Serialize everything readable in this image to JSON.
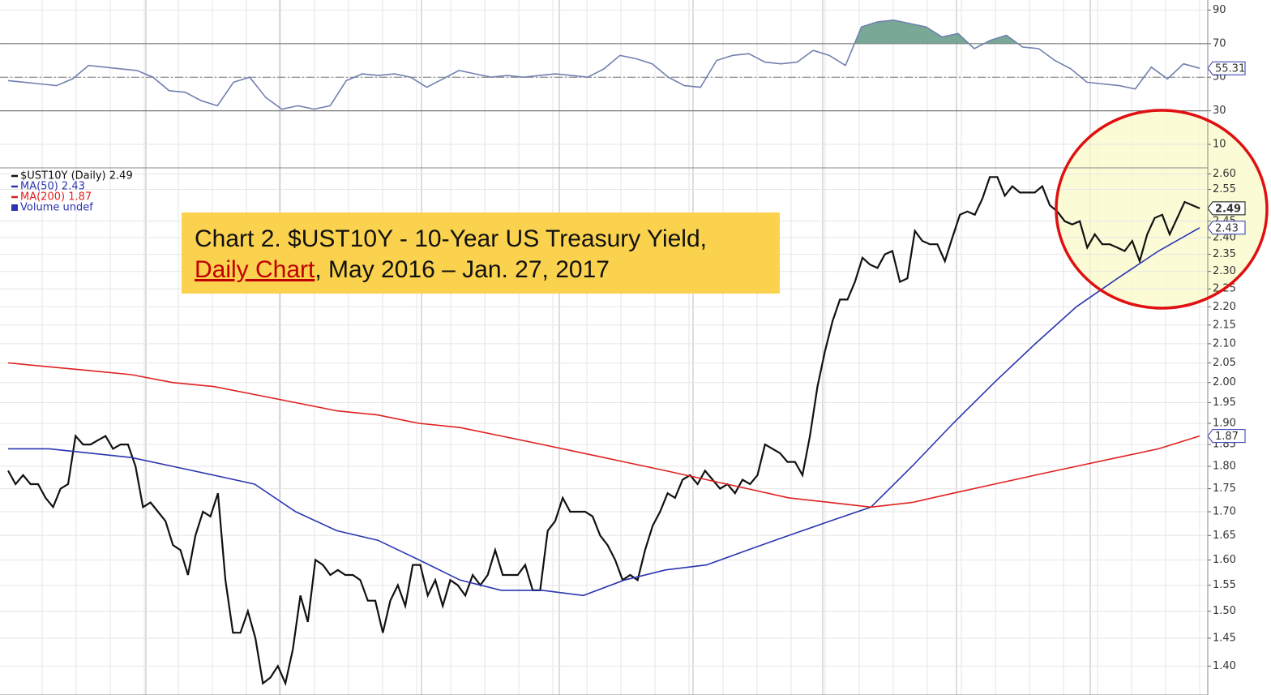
{
  "chart_data": [
    {
      "type": "line",
      "ylim": [
        -4,
        96
      ],
      "yticks": [
        90,
        70,
        50,
        30,
        10
      ],
      "grid": true,
      "overbought": 70,
      "midline": 50,
      "oversold": 30,
      "fill_above_color": "#6a9e8c",
      "series": [
        {
          "name": "RSI",
          "color": "#7180b0",
          "tag": "55.31",
          "values": [
            48,
            47,
            46,
            45,
            49,
            57,
            56,
            55,
            54,
            50,
            42,
            41,
            36,
            33,
            47,
            50,
            38,
            31,
            33,
            31,
            33,
            48,
            52,
            51,
            52,
            50,
            44,
            49,
            54,
            52,
            50,
            51,
            50,
            51,
            52,
            51,
            50,
            55,
            63,
            61,
            58,
            50,
            45,
            44,
            60,
            63,
            64,
            59,
            58,
            59,
            66,
            63,
            57,
            80,
            83,
            84,
            82,
            80,
            74,
            76,
            67,
            72,
            75,
            68,
            67,
            60,
            55,
            47,
            46,
            45,
            43,
            56,
            49,
            58,
            55.31
          ]
        }
      ]
    },
    {
      "type": "line",
      "log_scale": true,
      "ylim": [
        1.35,
        2.62
      ],
      "grid": true,
      "yticks": [
        {
          "value": 1.4,
          "label": "1.40"
        },
        {
          "value": 1.45,
          "label": "1.45"
        },
        {
          "value": 1.5,
          "label": "1.50"
        },
        {
          "value": 1.55,
          "label": "1.55"
        },
        {
          "value": 1.6,
          "label": "1.60"
        },
        {
          "value": 1.65,
          "label": "1.65"
        },
        {
          "value": 1.7,
          "label": "1.70"
        },
        {
          "value": 1.75,
          "label": "1.75"
        },
        {
          "value": 1.8,
          "label": "1.80"
        },
        {
          "value": 1.85,
          "label": "1.85"
        },
        {
          "value": 1.9,
          "label": "1.90"
        },
        {
          "value": 1.95,
          "label": "1.95"
        },
        {
          "value": 2.0,
          "label": "2.00"
        },
        {
          "value": 2.05,
          "label": "2.05"
        },
        {
          "value": 2.1,
          "label": "2.10"
        },
        {
          "value": 2.15,
          "label": "2.15"
        },
        {
          "value": 2.2,
          "label": "2.20"
        },
        {
          "value": 2.25,
          "label": "2.25"
        },
        {
          "value": 2.3,
          "label": "2.30"
        },
        {
          "value": 2.35,
          "label": "2.35"
        },
        {
          "value": 2.4,
          "label": "2.40"
        },
        {
          "value": 2.45,
          "label": "2.45"
        },
        {
          "value": 2.55,
          "label": "2.55"
        },
        {
          "value": 2.6,
          "label": "2.60"
        }
      ],
      "legend_extra": "Volume undef",
      "annotation": {
        "line1": "Chart 2. $UST10Y - 10-Year US Treasury Yield,",
        "link": "Daily Chart",
        "rest": ", May 2016 – Jan. 27, 2017"
      },
      "series": [
        {
          "name": "$UST10Y (Daily) 2.49",
          "color": "#111111",
          "tag": "2.49",
          "values": [
            1.79,
            1.76,
            1.78,
            1.76,
            1.76,
            1.73,
            1.71,
            1.75,
            1.76,
            1.87,
            1.85,
            1.85,
            1.86,
            1.87,
            1.84,
            1.85,
            1.85,
            1.8,
            1.71,
            1.72,
            1.7,
            1.68,
            1.63,
            1.62,
            1.57,
            1.65,
            1.7,
            1.69,
            1.74,
            1.56,
            1.46,
            1.46,
            1.5,
            1.45,
            1.37,
            1.38,
            1.4,
            1.37,
            1.43,
            1.53,
            1.48,
            1.6,
            1.59,
            1.57,
            1.58,
            1.57,
            1.57,
            1.56,
            1.52,
            1.52,
            1.46,
            1.52,
            1.55,
            1.51,
            1.59,
            1.59,
            1.53,
            1.56,
            1.51,
            1.56,
            1.55,
            1.53,
            1.57,
            1.55,
            1.57,
            1.62,
            1.57,
            1.57,
            1.57,
            1.59,
            1.54,
            1.54,
            1.66,
            1.68,
            1.73,
            1.7,
            1.7,
            1.7,
            1.69,
            1.65,
            1.63,
            1.6,
            1.56,
            1.57,
            1.56,
            1.62,
            1.67,
            1.7,
            1.74,
            1.73,
            1.77,
            1.78,
            1.76,
            1.79,
            1.77,
            1.75,
            1.76,
            1.74,
            1.77,
            1.76,
            1.78,
            1.85,
            1.84,
            1.83,
            1.81,
            1.81,
            1.78,
            1.87,
            1.99,
            2.08,
            2.16,
            2.22,
            2.22,
            2.27,
            2.34,
            2.32,
            2.31,
            2.35,
            2.36,
            2.27,
            2.28,
            2.42,
            2.39,
            2.38,
            2.38,
            2.33,
            2.4,
            2.47,
            2.48,
            2.47,
            2.52,
            2.59,
            2.59,
            2.53,
            2.56,
            2.54,
            2.54,
            2.54,
            2.56,
            2.5,
            2.48,
            2.45,
            2.44,
            2.45,
            2.37,
            2.41,
            2.38,
            2.38,
            2.37,
            2.36,
            2.39,
            2.33,
            2.41,
            2.46,
            2.47,
            2.41,
            2.46,
            2.51,
            2.5,
            2.49
          ]
        },
        {
          "name": "MA(50) 2.43",
          "color": "#2b35b0",
          "tag": "2.43",
          "values": [
            1.84,
            1.84,
            1.83,
            1.82,
            1.8,
            1.78,
            1.76,
            1.7,
            1.66,
            1.64,
            1.6,
            1.56,
            1.54,
            1.54,
            1.53,
            1.56,
            1.58,
            1.59,
            1.62,
            1.65,
            1.68,
            1.71,
            1.8,
            1.9,
            2.0,
            2.1,
            2.2,
            2.28,
            2.36,
            2.43
          ]
        },
        {
          "name": "MA(200) 1.87",
          "color": "#e02020",
          "tag": "1.87",
          "values": [
            2.05,
            2.04,
            2.03,
            2.02,
            2.0,
            1.99,
            1.97,
            1.95,
            1.93,
            1.92,
            1.9,
            1.89,
            1.87,
            1.85,
            1.83,
            1.81,
            1.79,
            1.77,
            1.75,
            1.73,
            1.72,
            1.71,
            1.72,
            1.74,
            1.76,
            1.78,
            1.8,
            1.82,
            1.84,
            1.87
          ]
        }
      ]
    }
  ]
}
